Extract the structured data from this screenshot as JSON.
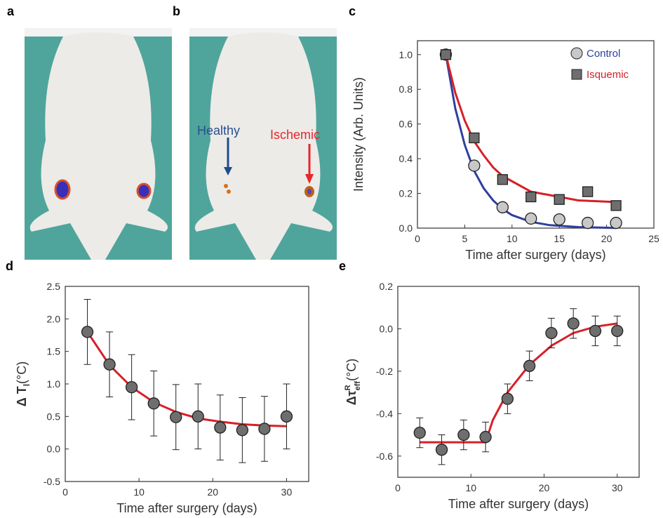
{
  "images": [
    {
      "label": "a"
    },
    {
      "label": "b",
      "annotations": [
        "Healthy",
        "Ischemic"
      ]
    }
  ],
  "chart_data": [
    {
      "type": "scatter",
      "label": "c",
      "xlabel": "Time after surgery (days)",
      "ylabel": "Intensity (Arb. Units)",
      "xlim": [
        0,
        25
      ],
      "xticks": [
        0,
        5,
        10,
        15,
        20,
        25
      ],
      "ylim": [
        0,
        1.08
      ],
      "yticks": [
        {
          "value": 0,
          "label": "0.0"
        },
        0.2,
        0.4,
        0.6,
        0.8,
        {
          "value": 1,
          "label": "1.0"
        }
      ],
      "legend": "upper right",
      "series": [
        {
          "name": "Control",
          "color": "#2e3f9e",
          "marker": "circle",
          "marker_color": "#c8c8c8",
          "x": [
            3,
            6,
            9,
            12,
            15,
            18,
            21
          ],
          "values": [
            1.0,
            0.36,
            0.12,
            0.055,
            0.05,
            0.03,
            0.03
          ],
          "fit_x": [
            3,
            4,
            5,
            6,
            7,
            8,
            9,
            10,
            12,
            14,
            17,
            21
          ],
          "fit_values": [
            1.0,
            0.69,
            0.48,
            0.33,
            0.23,
            0.16,
            0.11,
            0.075,
            0.036,
            0.017,
            0.006,
            0.001
          ]
        },
        {
          "name": "Isquemic",
          "color": "#d62028",
          "marker": "square",
          "marker_color": "#6e6e6e",
          "x": [
            3,
            6,
            9,
            12,
            15,
            18,
            21
          ],
          "values": [
            1.0,
            0.52,
            0.28,
            0.18,
            0.165,
            0.21,
            0.13
          ],
          "fit_x": [
            3,
            4,
            5,
            6,
            7,
            8,
            9,
            10,
            12,
            14,
            17,
            21
          ],
          "fit_values": [
            1.0,
            0.78,
            0.62,
            0.5,
            0.42,
            0.35,
            0.3,
            0.27,
            0.21,
            0.19,
            0.16,
            0.15
          ]
        }
      ]
    },
    {
      "type": "scatter",
      "label": "d",
      "xlabel": "Time after surgery (days)",
      "ylabel": {
        "main": "Δ T",
        "sub": "l",
        "unit": "(°C)"
      },
      "xlim": [
        0,
        33
      ],
      "xticks": [
        0,
        10,
        20,
        30
      ],
      "ylim": [
        -0.5,
        2.5
      ],
      "yticks": [
        -0.5,
        {
          "value": 0,
          "label": "0.0"
        },
        0.5,
        {
          "value": 1,
          "label": "1.0"
        },
        1.5,
        {
          "value": 2,
          "label": "2.0"
        },
        2.5
      ],
      "series": [
        {
          "color": "#d62028",
          "marker": "circle",
          "marker_color": "#6e6e6e",
          "x": [
            3,
            6,
            9,
            12,
            15,
            18,
            21,
            24,
            27,
            30
          ],
          "values": [
            1.8,
            1.3,
            0.95,
            0.7,
            0.49,
            0.5,
            0.33,
            0.29,
            0.31,
            0.5
          ],
          "errors": [
            0.5,
            0.5,
            0.5,
            0.5,
            0.5,
            0.5,
            0.5,
            0.5,
            0.5,
            0.5
          ],
          "fit_x": [
            3,
            6,
            9,
            12,
            15,
            18,
            21,
            24,
            27,
            30
          ],
          "fit_values": [
            1.8,
            1.29,
            0.95,
            0.72,
            0.57,
            0.47,
            0.42,
            0.38,
            0.36,
            0.35
          ]
        }
      ]
    },
    {
      "type": "scatter",
      "label": "e",
      "xlabel": "Time after surgery (days)",
      "ylabel": {
        "main": "Δτ",
        "sup": "R",
        "sub": "eff",
        "unit": "(°C)"
      },
      "xlim": [
        0,
        33
      ],
      "xticks": [
        0,
        10,
        20,
        30
      ],
      "ylim": [
        -0.7,
        0.2
      ],
      "yticks": [
        -0.6,
        -0.4,
        -0.2,
        {
          "value": 0,
          "label": "0.0"
        },
        0.2
      ],
      "series": [
        {
          "color": "#d62028",
          "marker": "circle",
          "marker_color": "#6e6e6e",
          "x": [
            3,
            6,
            9,
            12,
            15,
            18,
            21,
            24,
            27,
            30
          ],
          "values": [
            -0.49,
            -0.57,
            -0.5,
            -0.51,
            -0.33,
            -0.175,
            -0.02,
            0.025,
            -0.01,
            -0.01
          ],
          "errors": [
            0.07,
            0.07,
            0.07,
            0.07,
            0.07,
            0.07,
            0.07,
            0.07,
            0.07,
            0.07
          ],
          "fit_x": [
            3,
            12,
            13,
            15,
            18,
            21,
            24,
            27,
            30
          ],
          "fit_values": [
            -0.535,
            -0.535,
            -0.43,
            -0.3,
            -0.17,
            -0.08,
            -0.02,
            0.01,
            0.025
          ]
        }
      ]
    }
  ]
}
